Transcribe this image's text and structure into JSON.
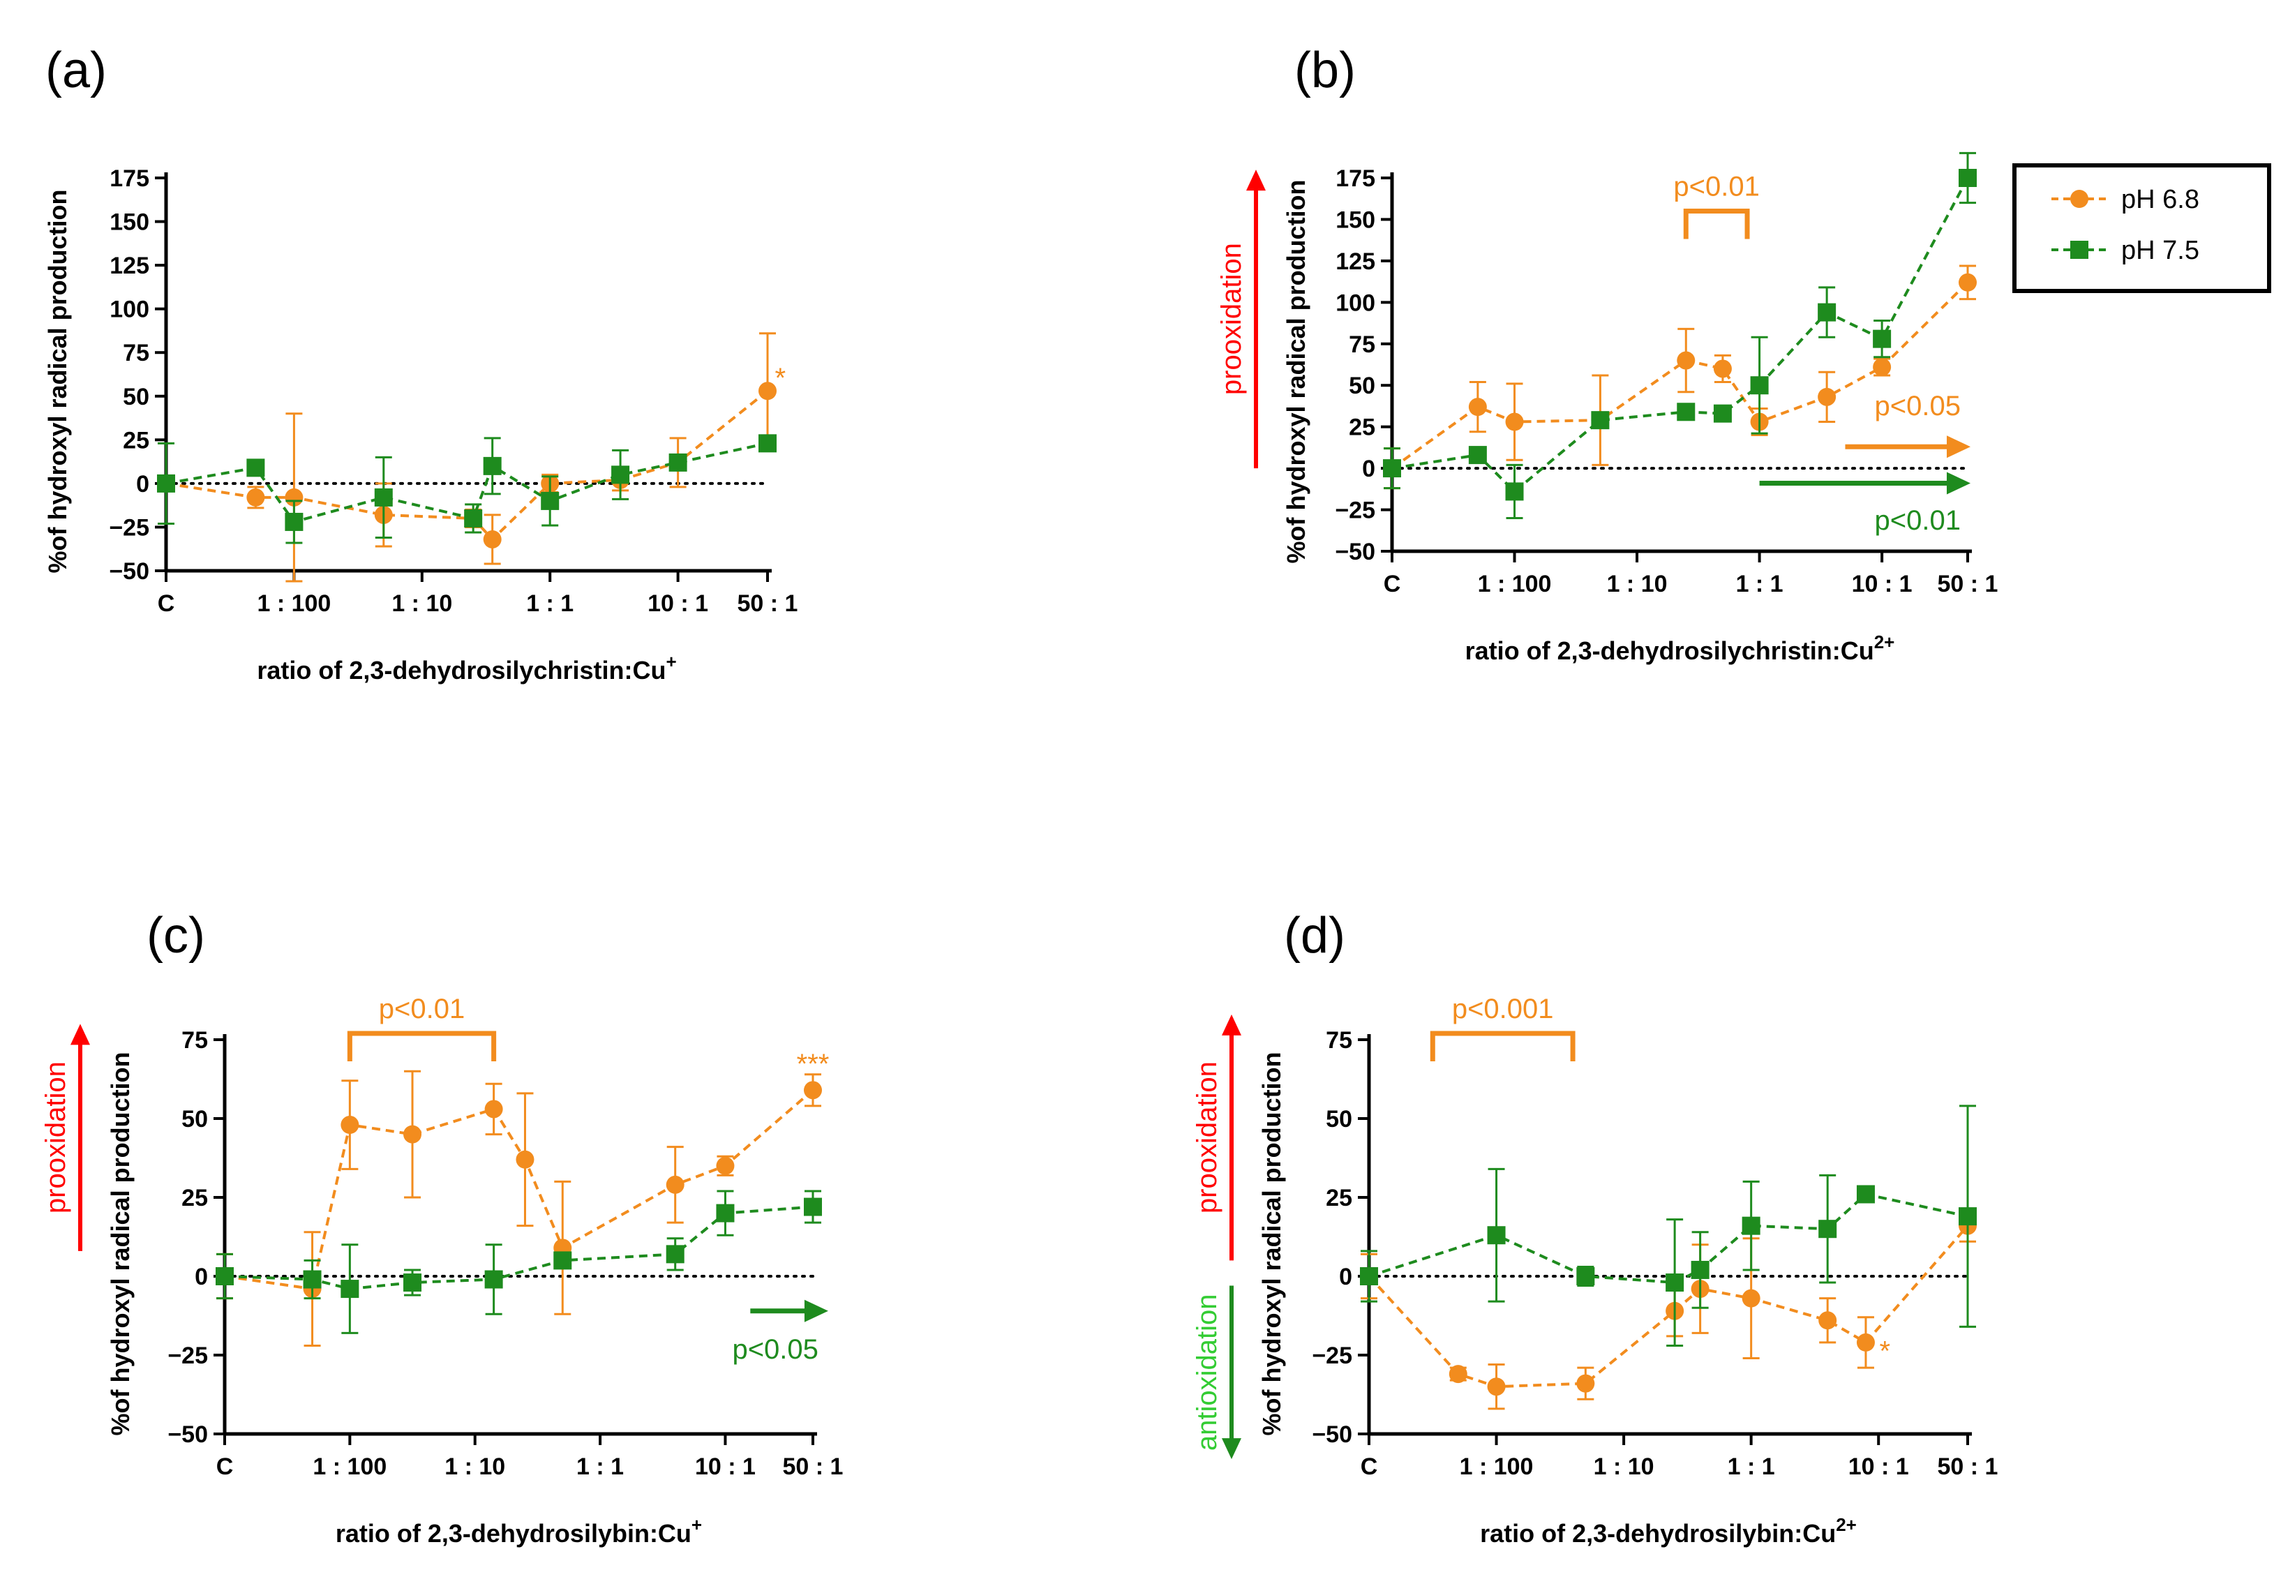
{
  "colors": {
    "ph68": "#F28C1E",
    "ph75": "#1E8B1E",
    "red": "#FF0000",
    "antiox": "#33CC33"
  },
  "legend": {
    "ph68": "pH 6.8",
    "ph75": "pH 7.5"
  },
  "chart_data": [
    {
      "id": "a",
      "panel_label": "(a)",
      "type": "line",
      "xlabel": "ratio of 2,3-dehydrosilychristin:Cu",
      "xlabel_sup": "+",
      "ylabel": "%of hydroxyl radical production",
      "ylim": [
        -50,
        175
      ],
      "yticks": [
        -50,
        -25,
        0,
        25,
        50,
        75,
        100,
        125,
        150,
        175
      ],
      "xlim": [
        -3,
        1.7
      ],
      "xticks": [
        {
          "label": "C",
          "x": -3
        },
        {
          "label": "1 : 100",
          "x": -2
        },
        {
          "label": "1 : 10",
          "x": -1
        },
        {
          "label": "1 : 1",
          "x": 0
        },
        {
          "label": "10 : 1",
          "x": 1
        },
        {
          "label": "50 : 1",
          "x": 1.7
        }
      ],
      "series": [
        {
          "name": "pH 6.8",
          "key": "ph68",
          "marker": "circle",
          "x": [
            -3,
            -2.3,
            -2.0,
            -1.3,
            -0.6,
            -0.45,
            0.0,
            0.55,
            1.0,
            1.7
          ],
          "y": [
            0,
            -8,
            -8,
            -18,
            -20,
            -32,
            0,
            2,
            12,
            53
          ],
          "err": [
            0,
            6,
            48,
            18,
            5,
            14,
            5,
            6,
            14,
            33
          ]
        },
        {
          "name": "pH 7.5",
          "key": "ph75",
          "marker": "square",
          "x": [
            -3,
            -2.3,
            -2.0,
            -1.3,
            -0.6,
            -0.45,
            0.0,
            0.55,
            1.0,
            1.7
          ],
          "y": [
            0,
            9,
            -22,
            -8,
            -20,
            10,
            -10,
            5,
            12,
            23
          ],
          "err": [
            23,
            0,
            12,
            23,
            8,
            16,
            14,
            14,
            0,
            0
          ]
        }
      ],
      "significance": [
        {
          "text": "*",
          "key": "ph68",
          "x": 1.8,
          "y": 60
        }
      ]
    },
    {
      "id": "b",
      "panel_label": "(b)",
      "type": "line",
      "xlabel": "ratio of 2,3-dehydrosilychristin:Cu",
      "xlabel_sup": "2+",
      "ylabel": "%of hydroxyl radical production",
      "ylim": [
        -50,
        175
      ],
      "yticks": [
        -50,
        -25,
        0,
        25,
        50,
        75,
        100,
        125,
        150,
        175
      ],
      "xlim": [
        -3,
        1.7
      ],
      "xticks": [
        {
          "label": "C",
          "x": -3
        },
        {
          "label": "1 : 100",
          "x": -2
        },
        {
          "label": "1 : 10",
          "x": -1
        },
        {
          "label": "1 : 1",
          "x": 0
        },
        {
          "label": "10 : 1",
          "x": 1
        },
        {
          "label": "50 : 1",
          "x": 1.7
        }
      ],
      "series": [
        {
          "name": "pH 6.8",
          "key": "ph68",
          "marker": "circle",
          "x": [
            -3,
            -2.3,
            -2.0,
            -1.3,
            -0.6,
            -0.3,
            0.0,
            0.55,
            1.0,
            1.7
          ],
          "y": [
            0,
            37,
            28,
            29,
            65,
            60,
            28,
            43,
            61,
            112
          ],
          "err": [
            12,
            15,
            23,
            27,
            19,
            8,
            8,
            15,
            5,
            10
          ]
        },
        {
          "name": "pH 7.5",
          "key": "ph75",
          "marker": "square",
          "x": [
            -3,
            -2.3,
            -2.0,
            -1.3,
            -0.6,
            -0.3,
            0.0,
            0.55,
            1.0,
            1.7
          ],
          "y": [
            0,
            8,
            -14,
            29,
            34,
            33,
            50,
            94,
            78,
            175
          ],
          "err": [
            12,
            0,
            16,
            0,
            0,
            0,
            29,
            15,
            11,
            15
          ]
        }
      ],
      "brackets": [
        {
          "text": "p<0.01",
          "key": "ph68",
          "x1": -0.6,
          "x2": -0.1,
          "y": 155
        }
      ],
      "trend_arrows": [
        {
          "text": "p<0.05",
          "key": "ph68",
          "x1": 0.7,
          "x2": 1.7,
          "y": 13,
          "label_y": 38
        },
        {
          "text": "p<0.01",
          "key": "ph75",
          "x1": 0.0,
          "x2": 1.7,
          "y": -9,
          "label_y": -31
        }
      ],
      "side_labels": [
        {
          "text": "prooxidation",
          "key": "red",
          "y1": 0,
          "y2": 180
        }
      ]
    },
    {
      "id": "c",
      "panel_label": "(c)",
      "type": "line",
      "xlabel": "ratio of 2,3-dehydrosilybin:Cu",
      "xlabel_sup": "+",
      "ylabel": "%of hydroxyl radical production",
      "ylim": [
        -50,
        75
      ],
      "yticks": [
        -50,
        -25,
        0,
        25,
        50,
        75
      ],
      "xlim": [
        -3,
        1.7
      ],
      "xticks": [
        {
          "label": "C",
          "x": -3
        },
        {
          "label": "1 : 100",
          "x": -2
        },
        {
          "label": "1 : 10",
          "x": -1
        },
        {
          "label": "1 : 1",
          "x": 0
        },
        {
          "label": "10 : 1",
          "x": 1
        },
        {
          "label": "50 : 1",
          "x": 1.7
        }
      ],
      "series": [
        {
          "name": "pH 6.8",
          "key": "ph68",
          "marker": "circle",
          "x": [
            -3,
            -2.3,
            -2.0,
            -1.5,
            -0.85,
            -0.6,
            -0.3,
            0.6,
            1.0,
            1.7
          ],
          "y": [
            0,
            -4,
            48,
            45,
            53,
            37,
            9,
            29,
            35,
            59
          ],
          "err": [
            7,
            18,
            14,
            20,
            8,
            21,
            21,
            12,
            3,
            5
          ]
        },
        {
          "name": "pH 7.5",
          "key": "ph75",
          "marker": "square",
          "x": [
            -3,
            -2.3,
            -2.0,
            -1.5,
            -0.85,
            -0.3,
            0.6,
            1.0,
            1.7
          ],
          "y": [
            0,
            -1,
            -4,
            -2,
            -1,
            5,
            7,
            20,
            22
          ],
          "err": [
            7,
            6,
            14,
            4,
            11,
            0,
            5,
            7,
            5
          ]
        }
      ],
      "brackets": [
        {
          "text": "p<0.01",
          "key": "ph68",
          "x1": -2.0,
          "x2": -0.85,
          "y": 77
        }
      ],
      "trend_arrows": [
        {
          "text": "p<0.05",
          "key": "ph75",
          "x1": 1.2,
          "x2": 1.8,
          "y": -11,
          "label_y": -23
        }
      ],
      "significance": [
        {
          "text": "***",
          "key": "ph68",
          "x": 1.7,
          "y": 67
        }
      ],
      "side_labels": [
        {
          "text": "prooxidation",
          "key": "red",
          "y1": 8,
          "y2": 80
        }
      ]
    },
    {
      "id": "d",
      "panel_label": "(d)",
      "type": "line",
      "xlabel": "ratio of 2,3-dehydrosilybin:Cu",
      "xlabel_sup": "2+",
      "ylabel": "%of hydroxyl radical production",
      "ylim": [
        -50,
        75
      ],
      "yticks": [
        -50,
        -25,
        0,
        25,
        50,
        75
      ],
      "xlim": [
        -3,
        1.7
      ],
      "xticks": [
        {
          "label": "C",
          "x": -3
        },
        {
          "label": "1 : 100",
          "x": -2
        },
        {
          "label": "1 : 10",
          "x": -1
        },
        {
          "label": "1 : 1",
          "x": 0
        },
        {
          "label": "10 : 1",
          "x": 1
        },
        {
          "label": "50 : 1",
          "x": 1.7
        }
      ],
      "series": [
        {
          "name": "pH 6.8",
          "key": "ph68",
          "marker": "circle",
          "x": [
            -3,
            -2.3,
            -2.0,
            -1.3,
            -0.6,
            -0.4,
            0.0,
            0.6,
            0.9,
            1.7
          ],
          "y": [
            0,
            -31,
            -35,
            -34,
            -11,
            -4,
            -7,
            -14,
            -21,
            16
          ],
          "err": [
            7,
            2,
            7,
            5,
            8,
            14,
            19,
            7,
            8,
            5
          ]
        },
        {
          "name": "pH 7.5",
          "key": "ph75",
          "marker": "square",
          "x": [
            -3,
            -2.0,
            -1.3,
            -0.6,
            -0.4,
            0.0,
            0.6,
            0.9,
            1.7
          ],
          "y": [
            0,
            13,
            0,
            -2,
            2,
            16,
            15,
            26,
            19
          ],
          "err": [
            8,
            21,
            3,
            20,
            12,
            14,
            17,
            0,
            35
          ]
        }
      ],
      "brackets": [
        {
          "text": "p<0.001",
          "key": "ph68",
          "x1": -2.5,
          "x2": -1.4,
          "y": 77
        }
      ],
      "significance": [
        {
          "text": "*",
          "key": "ph68",
          "x": 1.05,
          "y": -24
        }
      ],
      "side_labels": [
        {
          "text": "prooxidation",
          "key": "red",
          "y1": 5,
          "y2": 83
        },
        {
          "text": "antioxidation",
          "key": "ph75",
          "y1": -3,
          "y2": -58,
          "text_key": "antiox"
        }
      ]
    }
  ]
}
